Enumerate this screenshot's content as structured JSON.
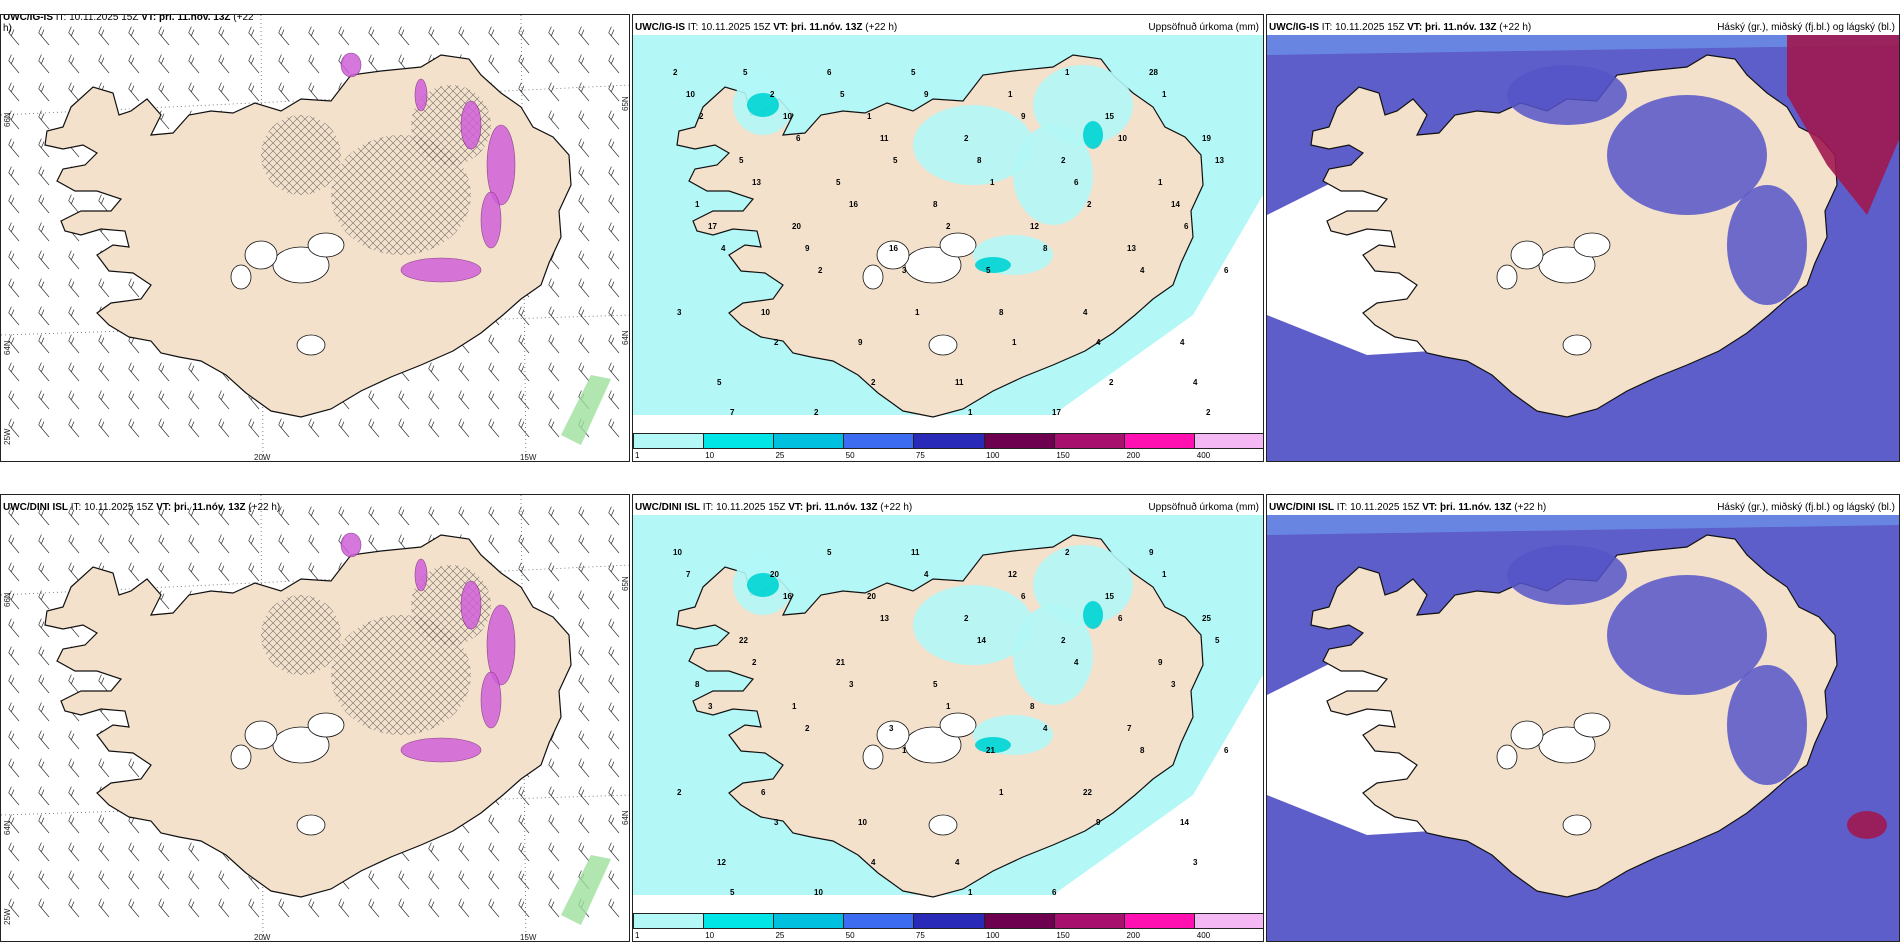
{
  "panels": {
    "top_left": {
      "title_model": "UWC/IG-IS",
      "title_it": "IT: 10.11.2025 15Z",
      "title_vt_bold": "VT: þri. 11.nóv. 13Z",
      "title_lead": "(+22",
      "title_wrap": "h)",
      "lon_labels": [
        "20W",
        "15W"
      ],
      "lat_labels": [
        "66N",
        "64N",
        "25W"
      ],
      "lat_labels_right": [
        "65N",
        "64N"
      ]
    },
    "top_mid": {
      "title_model": "UWC/IG-IS",
      "title_it": "IT: 10.11.2025 15Z",
      "title_vt_bold": "VT: þri. 11.nóv. 13Z",
      "title_lead": "(+22 h)",
      "right_label": "Uppsöfnuð úrkoma (mm)",
      "numbers": [
        "2",
        "2",
        "1",
        "2",
        "2",
        "1",
        "1",
        "20",
        "16",
        "5",
        "4",
        "4",
        "5",
        "2",
        "5",
        "1",
        "15",
        "19",
        "5",
        "5",
        "8",
        "12",
        "13",
        "6",
        "10",
        "9",
        "11",
        "17",
        "28",
        "10",
        "10",
        "11",
        "8",
        "6",
        "14",
        "17",
        "9",
        "3",
        "8",
        "4",
        "4",
        "7",
        "6",
        "9",
        "9",
        "10",
        "13",
        "13",
        "16",
        "2",
        "8",
        "4",
        "3",
        "2",
        "2",
        "1",
        "1",
        "1",
        "2",
        "6",
        "5",
        "1",
        "2",
        "6",
        "4",
        "2",
        "1",
        "1",
        "2",
        "2",
        "5",
        "5"
      ]
    },
    "top_right": {
      "title_model": "UWC/IG-IS",
      "title_it": "IT: 10.11.2025 15Z",
      "title_vt_bold": "VT: þri. 11.nóv. 13Z",
      "title_lead": "(+22 h)",
      "right_label": "Háský (gr.), miðský (fj.bl.) og lágský (bl.)"
    },
    "bottom_left": {
      "title_model": "UWC/DINI ISL",
      "title_it": "IT: 10.11.2025 15Z",
      "title_vt_bold": "VT: þri. 11.nóv. 13Z",
      "title_lead": "(+22 h)",
      "lon_labels": [
        "20W",
        "15W"
      ],
      "lat_labels": [
        "66N",
        "64N",
        "25W"
      ],
      "lat_labels_right": [
        "65N",
        "64N"
      ]
    },
    "bottom_mid": {
      "title_model": "UWC/DINI ISL",
      "title_it": "IT: 10.11.2025 15Z",
      "title_vt_bold": "VT: þri. 11.nóv. 13Z",
      "title_lead": "(+22 h)",
      "right_label": "Uppsöfnuð úrkoma (mm)",
      "numbers": [
        "10",
        "20",
        "20",
        "2",
        "2",
        "9",
        "8",
        "1",
        "3",
        "21",
        "22",
        "14",
        "12",
        "10",
        "11",
        "12",
        "15",
        "25",
        "22",
        "21",
        "5",
        "8",
        "7",
        "6",
        "6",
        "10",
        "4",
        "6",
        "9",
        "7",
        "16",
        "13",
        "14",
        "4",
        "3",
        "3",
        "2",
        "1",
        "1",
        "9",
        "3",
        "5",
        "5",
        "4",
        "6",
        "6",
        "5",
        "2",
        "3",
        "1",
        "4",
        "8",
        "2",
        "3",
        "4",
        "1",
        "2",
        "1"
      ]
    },
    "bottom_right": {
      "title_model": "UWC/DINI ISL",
      "title_it": "IT: 10.11.2025 15Z",
      "title_vt_bold": "VT: þri. 11.nóv. 13Z",
      "title_lead": "(+22 h)",
      "right_label": "Háský (gr.), miðský (fj.bl.) og lágský (bl.)"
    }
  },
  "precip_colorbar": {
    "colors": [
      "#b3f7f7",
      "#00e5e5",
      "#00c0e0",
      "#3d6cf0",
      "#2a2ab8",
      "#6e0050",
      "#a8106e",
      "#ff10b0",
      "#f4b8f4"
    ],
    "labels": [
      "1",
      "10",
      "25",
      "50",
      "75",
      "100",
      "150",
      "200",
      "400"
    ]
  },
  "colors": {
    "land": "#f3e1cc",
    "coast": "#111111",
    "sea_precip": "#b3f7f7",
    "cloud_low": "#5555c8",
    "cloud_mid": "#6fa0f0",
    "cloud_high": "#a01850",
    "pink_precip": "#d060d8",
    "green_precip": "#9ee09e"
  }
}
